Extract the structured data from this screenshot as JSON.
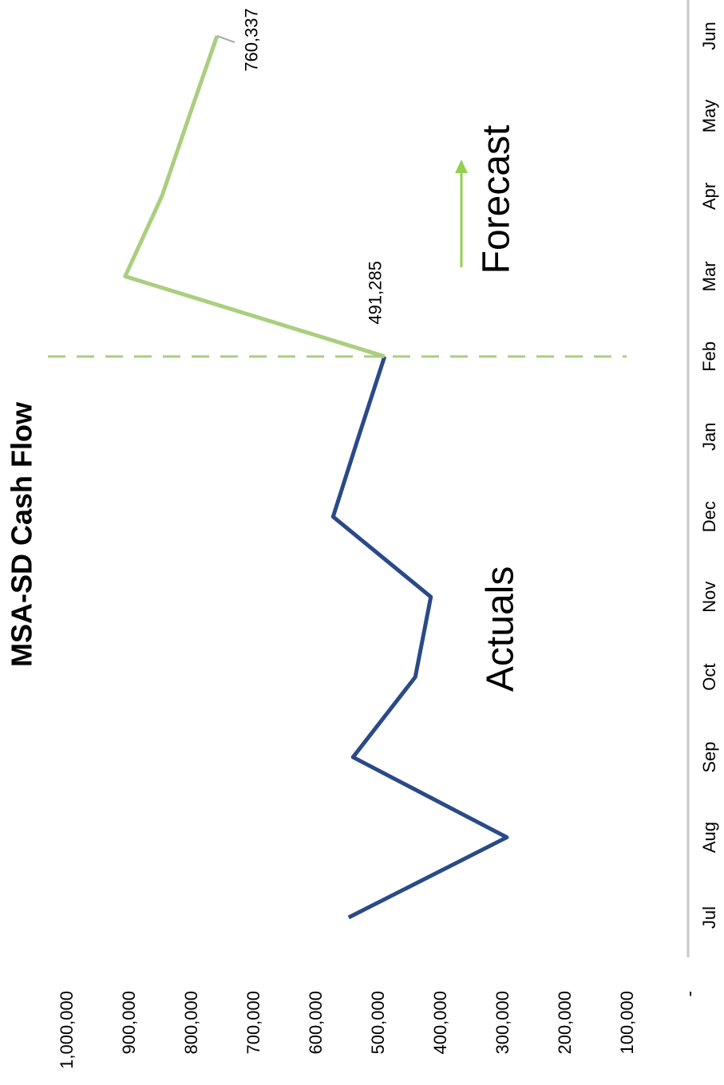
{
  "chart_data": {
    "type": "line",
    "title": "MSA-SD  Cash Flow",
    "categories": [
      "Jul",
      "Aug",
      "Sep",
      "Oct",
      "Nov",
      "Dec",
      "Jan",
      "Feb",
      "Mar",
      "Apr",
      "May",
      "Jun"
    ],
    "series": [
      {
        "name": "Actuals",
        "color": "#2a4a87",
        "values": [
          549000,
          295000,
          542000,
          442000,
          417000,
          574000,
          533000,
          491285,
          null,
          null,
          null,
          null
        ]
      },
      {
        "name": "Forecast",
        "color": "#a9cf7f",
        "values": [
          null,
          null,
          null,
          null,
          null,
          null,
          null,
          491285,
          908000,
          849000,
          805000,
          760337
        ],
        "value_labels": [
          null,
          null,
          null,
          null,
          null,
          null,
          null,
          "491,285",
          null,
          null,
          null,
          "760,337"
        ]
      }
    ],
    "ylim": [
      0,
      1000000
    ],
    "yticks": [
      {
        "value": 0,
        "label": "-"
      },
      {
        "value": 100000,
        "label": "100,000"
      },
      {
        "value": 200000,
        "label": "200,000"
      },
      {
        "value": 300000,
        "label": "300,000"
      },
      {
        "value": 400000,
        "label": "400,000"
      },
      {
        "value": 500000,
        "label": "500,000"
      },
      {
        "value": 600000,
        "label": "600,000"
      },
      {
        "value": 700000,
        "label": "700,000"
      },
      {
        "value": 800000,
        "label": "800,000"
      },
      {
        "value": 900000,
        "label": "900,000"
      },
      {
        "value": 1000000,
        "label": "1,000,000"
      }
    ],
    "grid": false
  }
}
